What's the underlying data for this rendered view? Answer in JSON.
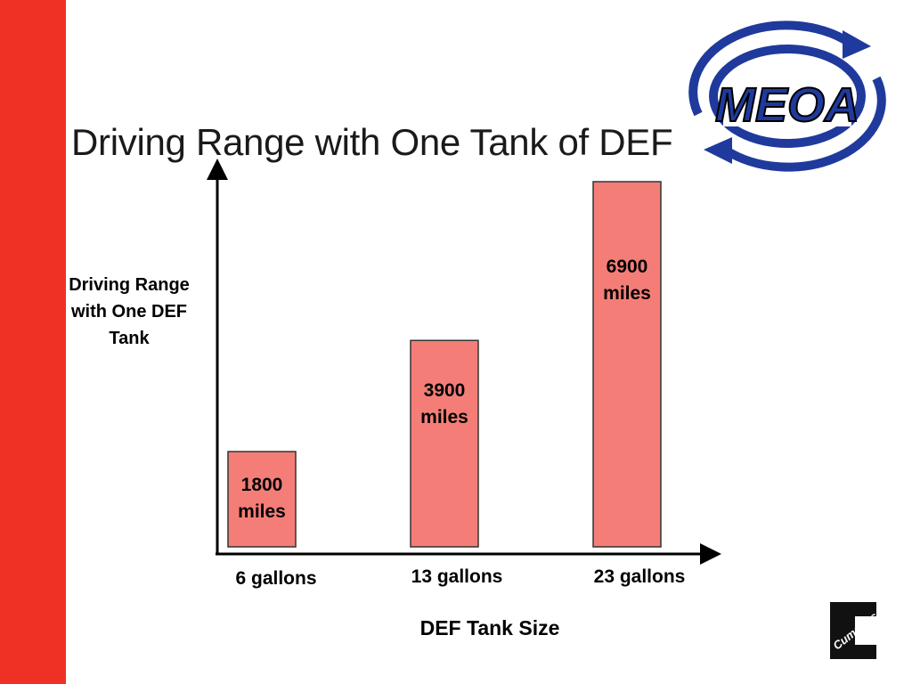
{
  "slide": {
    "title": "Driving Range with One Tank of DEF",
    "accent_color": "#ee3124",
    "logos": {
      "top_right": {
        "name": "meoa-logo",
        "text": "MEOA"
      },
      "bottom_right": {
        "name": "cummins-logo",
        "text": "Cummins"
      }
    }
  },
  "chart_data": {
    "type": "bar",
    "title": "Driving Range with One Tank of DEF",
    "categories": [
      "6 gallons",
      "13 gallons",
      "23 gallons"
    ],
    "values": [
      1800,
      3900,
      6900
    ],
    "data_labels": [
      [
        "1800",
        "miles"
      ],
      [
        "3900",
        "miles"
      ],
      [
        "6900",
        "miles"
      ]
    ],
    "xlabel": "DEF Tank Size",
    "ylabel": "Driving Range with One DEF Tank",
    "ylim": [
      0,
      6900
    ],
    "grid": false,
    "legend": "none",
    "bar_color": "#f47e77",
    "bar_edge_color": "#333333"
  }
}
